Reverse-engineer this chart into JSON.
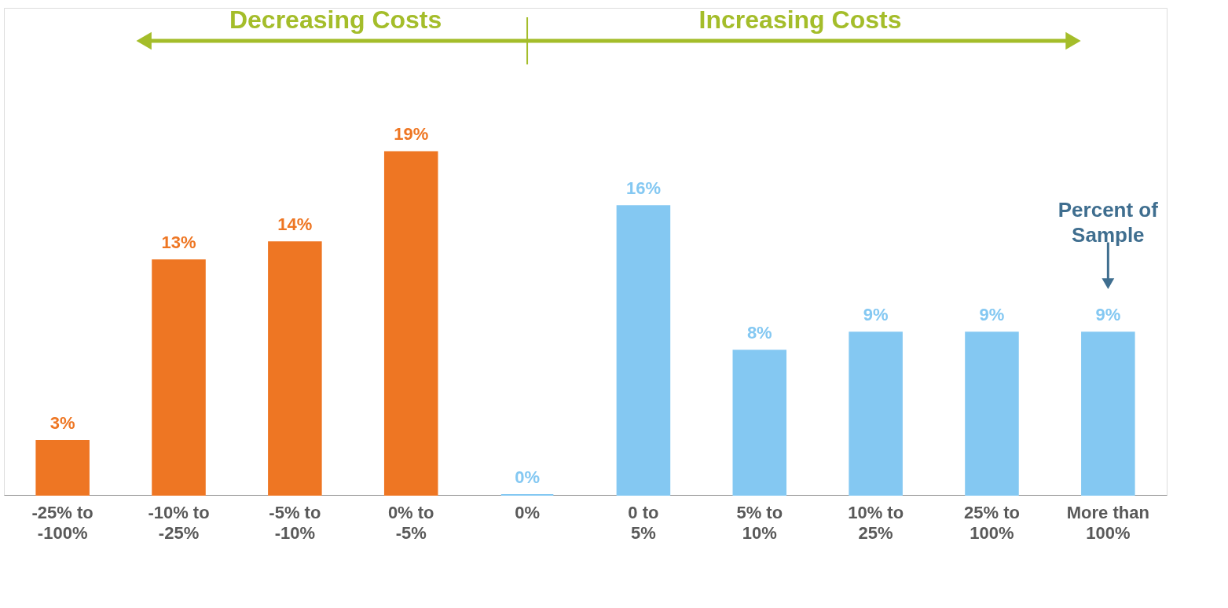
{
  "chart_data": {
    "type": "bar",
    "categories": [
      "-25% to\n-100%",
      "-10% to\n-25%",
      "-5% to\n-10%",
      "0% to\n-5%",
      "0%",
      "0 to\n5%",
      "5% to\n10%",
      "10% to\n25%",
      "25% to\n100%",
      "More than\n100%"
    ],
    "values": [
      3,
      13,
      14,
      19,
      0,
      16,
      8,
      9,
      9,
      9
    ],
    "colors": [
      "#ee7623",
      "#ee7623",
      "#ee7623",
      "#ee7623",
      "#84c8f2",
      "#84c8f2",
      "#84c8f2",
      "#84c8f2",
      "#84c8f2",
      "#84c8f2"
    ],
    "value_labels": [
      "3%",
      "13%",
      "14%",
      "19%",
      "0%",
      "16%",
      "8%",
      "9%",
      "9%",
      "9%"
    ],
    "annotations": [
      "Decreasing Costs",
      "Increasing Costs",
      "Percent of\nSample"
    ],
    "grid": false
  }
}
